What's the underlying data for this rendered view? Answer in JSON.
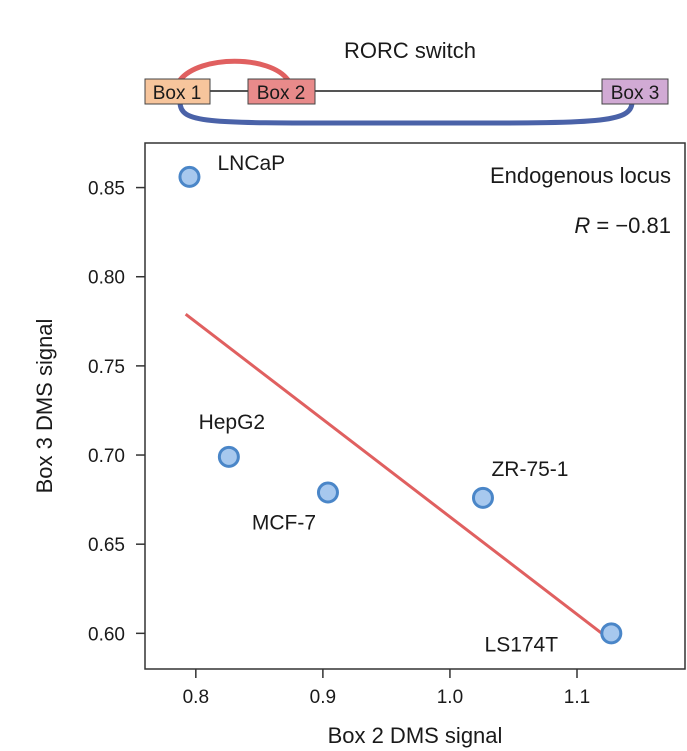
{
  "diagram": {
    "title": "RORC switch",
    "boxes": [
      {
        "label": "Box 1",
        "color": "#f7c59c"
      },
      {
        "label": "Box 2",
        "color": "#e88a8a"
      },
      {
        "label": "Box 3",
        "color": "#d1aad4"
      }
    ],
    "arc_top_color": "#e06060",
    "arc_bottom_color": "#4a62a8"
  },
  "chart_data": {
    "type": "scatter",
    "xlabel": "Box 2 DMS signal",
    "ylabel": "Box 3 DMS signal",
    "xlim": [
      0.76,
      1.185
    ],
    "ylim": [
      0.58,
      0.875
    ],
    "xticks": [
      0.8,
      0.9,
      1.0,
      1.1
    ],
    "xtick_labels": [
      "0.8",
      "0.9",
      "1.0",
      "1.1"
    ],
    "yticks": [
      0.6,
      0.65,
      0.7,
      0.75,
      0.8,
      0.85
    ],
    "ytick_labels": [
      "0.60",
      "0.65",
      "0.70",
      "0.75",
      "0.80",
      "0.85"
    ],
    "grid": false,
    "points": [
      {
        "label": "LNCaP",
        "x": 0.795,
        "y": 0.856
      },
      {
        "label": "HepG2",
        "x": 0.826,
        "y": 0.699
      },
      {
        "label": "MCF-7",
        "x": 0.904,
        "y": 0.679
      },
      {
        "label": "ZR-75-1",
        "x": 1.026,
        "y": 0.676
      },
      {
        "label": "LS174T",
        "x": 1.127,
        "y": 0.6
      }
    ],
    "point_color": "#a7c8ee",
    "point_edge_color": "#4a86c8",
    "fit_line": {
      "x": [
        0.792,
        1.125
      ],
      "y": [
        0.779,
        0.597
      ],
      "color": "#e06060"
    },
    "annotation_title": "Endogenous locus",
    "annotation_r_symbol": "R",
    "annotation_r_value": " = −0.81"
  }
}
